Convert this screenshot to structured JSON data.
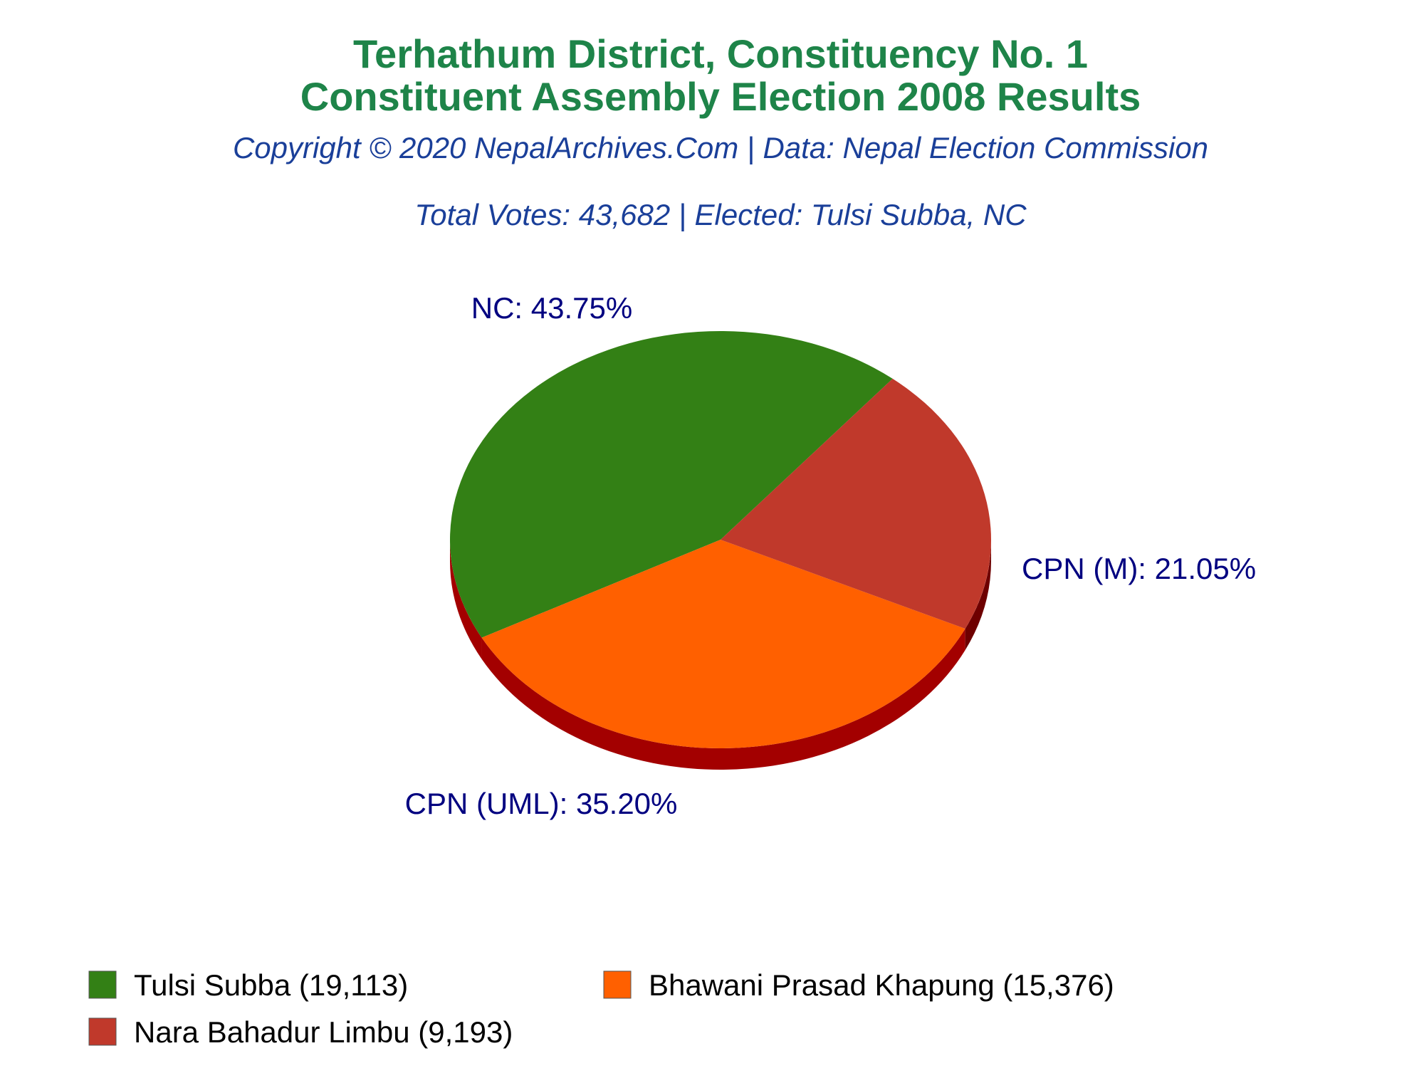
{
  "colors": {
    "title": "#1e8449",
    "subtitle": "#1a3f99",
    "slice_label": "#000080",
    "side_dark": "#a30000",
    "side_darker": "#6e0000"
  },
  "chart_data": {
    "type": "pie",
    "title": "Terhathum District, Constituency No. 1",
    "title_line2": "Constituent Assembly Election 2008 Results",
    "subtitle": "Copyright © 2020 NepalArchives.Com | Data: Nepal Election Commission",
    "subtitle2": "Total Votes: 43,682 | Elected: Tulsi Subba, NC",
    "legend_position": "bottom",
    "slices": [
      {
        "party": "NC",
        "candidate": "Tulsi Subba",
        "votes": 19113,
        "percent": 43.75,
        "label": "NC: 43.75%",
        "legend": "Tulsi Subba (19,113)",
        "color": "#338015"
      },
      {
        "party": "CPN (UML)",
        "candidate": "Bhawani Prasad Khapung",
        "votes": 15376,
        "percent": 35.2,
        "label": "CPN (UML): 35.20%",
        "legend": "Bhawani Prasad Khapung (15,376)",
        "color": "#ff6000"
      },
      {
        "party": "CPN (M)",
        "candidate": "Nara Bahadur Limbu",
        "votes": 9193,
        "percent": 21.05,
        "label": "CPN (M): 21.05%",
        "legend": "Nara Bahadur Limbu (9,193)",
        "color": "#c0392b"
      }
    ]
  }
}
